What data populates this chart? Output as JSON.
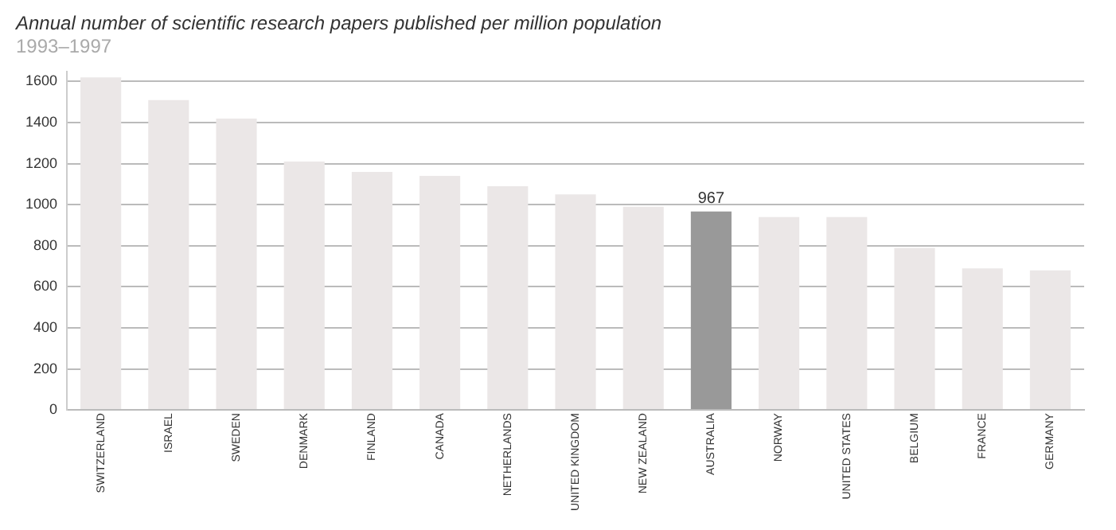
{
  "chart_data": {
    "type": "bar",
    "title": "Annual number of scientific research papers published per million population",
    "subtitle": "1993–1997",
    "categories": [
      "SWITZERLAND",
      "ISRAEL",
      "SWEDEN",
      "DENMARK",
      "FINLAND",
      "CANADA",
      "NETHERLANDS",
      "UNITED KINGDOM",
      "NEW ZEALAND",
      "AUSTRALIA",
      "NORWAY",
      "UNITED STATES",
      "BELGIUM",
      "FRANCE",
      "GERMANY"
    ],
    "values": [
      1620,
      1510,
      1420,
      1210,
      1160,
      1140,
      1090,
      1050,
      990,
      967,
      940,
      940,
      790,
      690,
      680
    ],
    "colors": [
      "#ebe7e7",
      "#ebe7e7",
      "#ebe7e7",
      "#ebe7e7",
      "#ebe7e7",
      "#ebe7e7",
      "#ebe7e7",
      "#ebe7e7",
      "#ebe7e7",
      "#999999",
      "#ebe7e7",
      "#ebe7e7",
      "#ebe7e7",
      "#ebe7e7",
      "#ebe7e7"
    ],
    "value_labels": [
      null,
      null,
      null,
      null,
      null,
      null,
      null,
      null,
      null,
      "967",
      null,
      null,
      null,
      null,
      null
    ],
    "ylim": [
      0,
      1650
    ],
    "yticks": [
      0,
      200,
      400,
      600,
      800,
      1000,
      1200,
      1400,
      1600
    ],
    "grid": "y"
  }
}
